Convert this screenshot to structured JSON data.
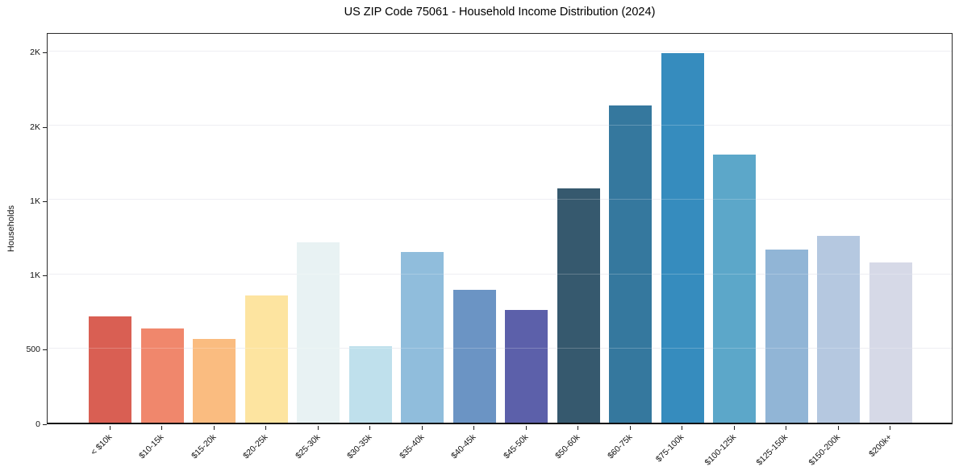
{
  "title": "US ZIP Code 75061 - Household Income Distribution (2024)",
  "chart_data": {
    "type": "bar",
    "title": "US ZIP Code 75061 - Household Income Distribution (2024)",
    "xlabel": "",
    "ylabel": "Households",
    "categories": [
      "< $10k",
      "$10-15k",
      "$15-20k",
      "$20-25k",
      "$25-30k",
      "$30-35k",
      "$35-40k",
      "$40-45k",
      "$45-50k",
      "$50-60k",
      "$60-75k",
      "$75-100k",
      "$100-125k",
      "$125-150k",
      "$150-200k",
      "$200k+"
    ],
    "values": [
      717,
      634,
      566,
      858,
      1216,
      517,
      1150,
      893,
      761,
      1578,
      2137,
      2488,
      1806,
      1166,
      1258,
      1079
    ],
    "bar_colors": [
      "#d95f53",
      "#f0876c",
      "#fabc80",
      "#fde4a0",
      "#e8f2f3",
      "#bfe0ec",
      "#90bddc",
      "#6b94c4",
      "#5c60aa",
      "#36596e",
      "#35789e",
      "#368cbe",
      "#5ca7c9",
      "#91b5d6",
      "#b5c8e0",
      "#d6d9e7"
    ],
    "ylim": [
      0,
      2635
    ],
    "y_ticks": [
      {
        "value": 0,
        "label": "0"
      },
      {
        "value": 500,
        "label": "500"
      },
      {
        "value": 1000,
        "label": "1K"
      },
      {
        "value": 1500,
        "label": "1K"
      },
      {
        "value": 2000,
        "label": "2K"
      },
      {
        "value": 2500,
        "label": "2K"
      }
    ],
    "grid": true,
    "legend": "none",
    "background": "#ffffff",
    "grid_color": "#e9e9f0",
    "axis_color": "#1f1f1f",
    "text_color": "#111111"
  }
}
